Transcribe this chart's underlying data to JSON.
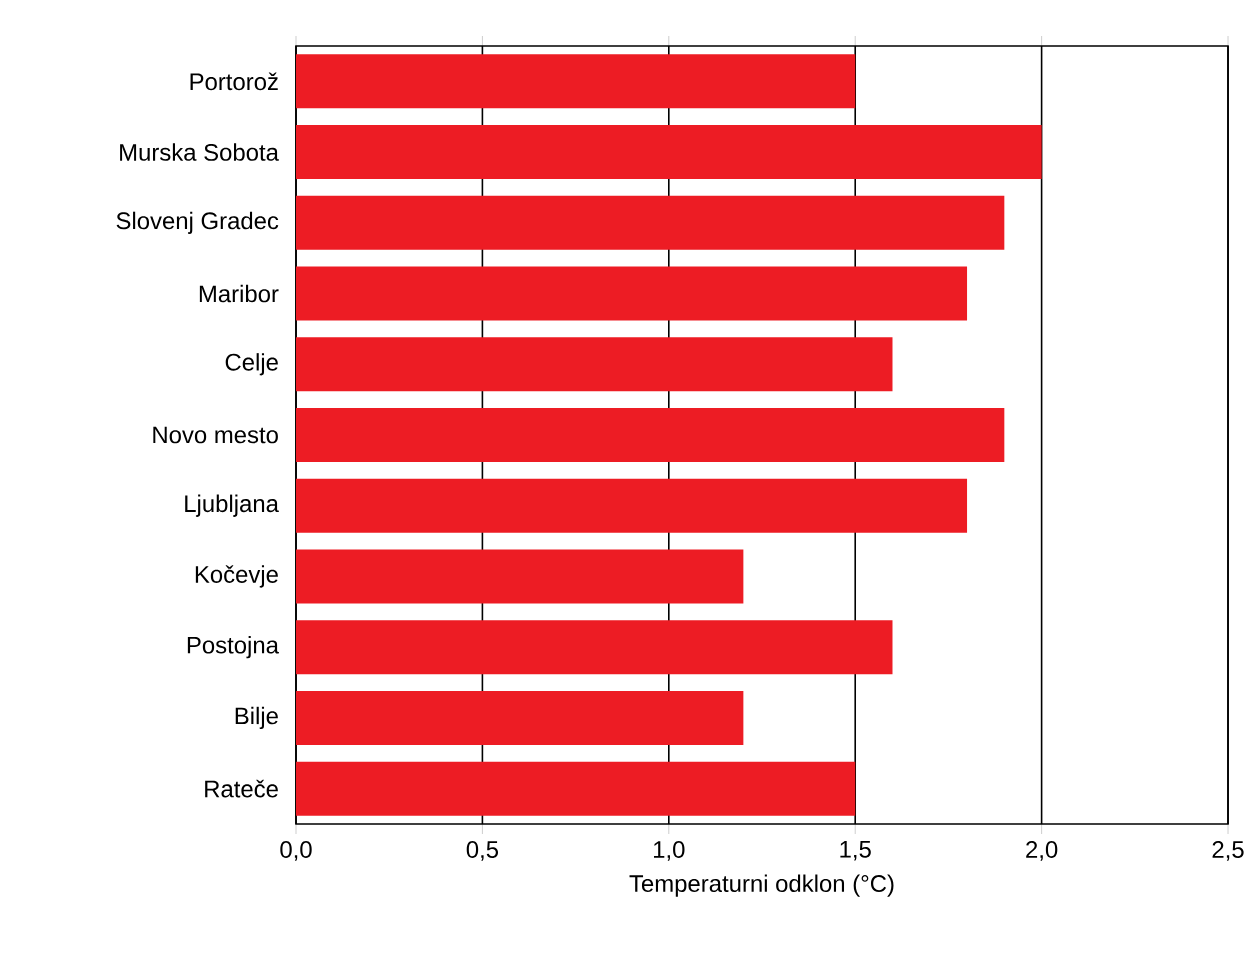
{
  "chart_data": {
    "type": "bar",
    "orientation": "horizontal",
    "xlabel": "Temperaturni odklon (°C)",
    "categories": [
      "Portorož",
      "Murska Sobota",
      "Slovenj Gradec",
      "Maribor",
      "Celje",
      "Novo mesto",
      "Ljubljana",
      "Kočevje",
      "Postojna",
      "Bilje",
      "Rateče"
    ],
    "values": [
      1.5,
      2.0,
      1.9,
      1.8,
      1.6,
      1.9,
      1.8,
      1.2,
      1.6,
      1.2,
      1.5
    ],
    "color": "#ed1c24",
    "xlim": [
      0,
      2.5
    ],
    "xticks": [
      {
        "value": 0,
        "label": "0,0"
      },
      {
        "value": 0.5,
        "label": "0,5"
      },
      {
        "value": 1.0,
        "label": "1,0"
      },
      {
        "value": 1.5,
        "label": "1,5"
      },
      {
        "value": 2.0,
        "label": "2,0"
      },
      {
        "value": 2.5,
        "label": "2,5"
      }
    ],
    "grid": "x"
  }
}
